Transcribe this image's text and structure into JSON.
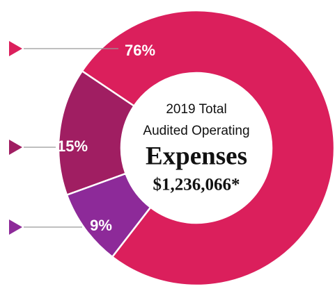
{
  "chart_data": {
    "type": "donut",
    "title_lines": [
      "2019 Total",
      "Audited Operating"
    ],
    "heading": "Expenses",
    "total": "$1,236,066*",
    "values": [
      76,
      15,
      9
    ],
    "value_labels": [
      "76%",
      "15%",
      "9%"
    ],
    "colors": [
      "#db1f5c",
      "#a01e62",
      "#8d2a99"
    ]
  }
}
